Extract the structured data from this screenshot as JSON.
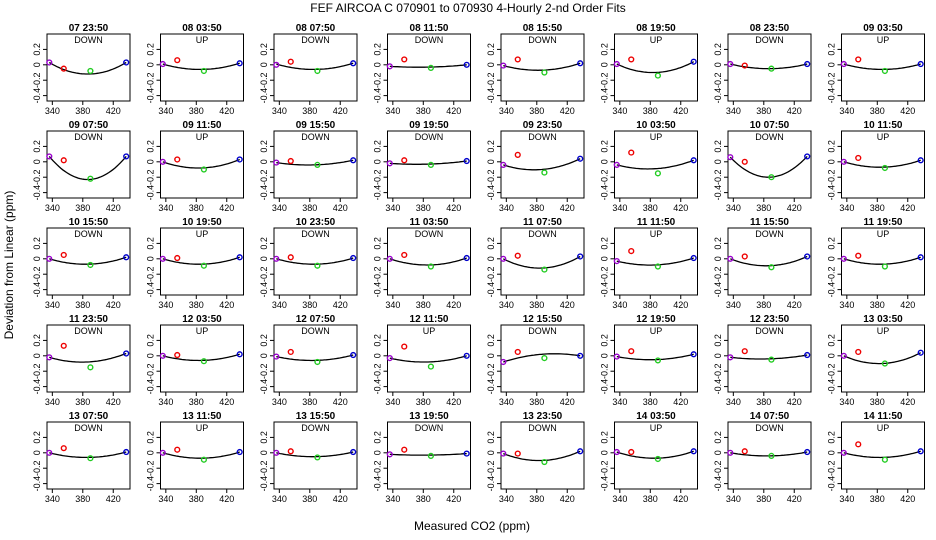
{
  "figure": {
    "title": "FEF   AIRCOA C   070901 to 070930   4-Hourly 2-nd Order Fits",
    "xlabel": "Measured CO2 (ppm)",
    "ylabel": "Deviation from Linear (ppm)"
  },
  "colors": {
    "curve": "#000000",
    "std_low": "#9900cc",
    "std_mid1": "#ee0000",
    "std_mid2": "#22cc22",
    "std_high": "#0000cc",
    "frame": "#000000"
  },
  "chart_data": {
    "type": "scatter",
    "x_ticks": [
      340,
      380,
      420
    ],
    "y_ticks": [
      -0.4,
      -0.2,
      0,
      0.2
    ],
    "x_tick_labels": [
      "340",
      "380",
      "420"
    ],
    "y_tick_labels": [
      "-0.4",
      "-0.2",
      "0",
      "0.2"
    ],
    "xlim": [
      333,
      442
    ],
    "ylim": [
      -0.47,
      0.4
    ],
    "std_x": [
      336,
      355,
      390,
      437
    ],
    "panels": [
      {
        "title": "07 23:50",
        "mode": "DOWN",
        "points": [
          0.03,
          -0.05,
          -0.08,
          0.03
        ],
        "curve": [
          0.03,
          -0.12,
          0.03
        ]
      },
      {
        "title": "08 03:50",
        "mode": "UP",
        "points": [
          0.01,
          0.06,
          -0.08,
          0.02
        ],
        "curve": [
          0.01,
          -0.06,
          0.02
        ]
      },
      {
        "title": "08 07:50",
        "mode": "DOWN",
        "points": [
          0.0,
          0.04,
          -0.08,
          0.02
        ],
        "curve": [
          0.01,
          -0.06,
          0.02
        ]
      },
      {
        "title": "08 11:50",
        "mode": "DOWN",
        "points": [
          -0.02,
          0.07,
          -0.04,
          0.0
        ],
        "curve": [
          -0.02,
          -0.03,
          0.0
        ]
      },
      {
        "title": "08 15:50",
        "mode": "DOWN",
        "points": [
          -0.01,
          0.07,
          -0.1,
          0.02
        ],
        "curve": [
          -0.01,
          -0.07,
          0.02
        ]
      },
      {
        "title": "08 19:50",
        "mode": "UP",
        "points": [
          0.01,
          0.07,
          -0.14,
          0.04
        ],
        "curve": [
          0.01,
          -0.1,
          0.04
        ]
      },
      {
        "title": "08 23:50",
        "mode": "DOWN",
        "points": [
          0.01,
          -0.01,
          -0.05,
          0.01
        ],
        "curve": [
          0.01,
          -0.05,
          0.01
        ]
      },
      {
        "title": "09 03:50",
        "mode": "UP",
        "points": [
          0.01,
          0.07,
          -0.08,
          0.01
        ],
        "curve": [
          0.01,
          -0.06,
          0.01
        ]
      },
      {
        "title": "09 07:50",
        "mode": "DOWN",
        "points": [
          0.07,
          0.02,
          -0.22,
          0.07
        ],
        "curve": [
          0.07,
          -0.23,
          0.07
        ]
      },
      {
        "title": "09 11:50",
        "mode": "UP",
        "points": [
          0.0,
          0.03,
          -0.1,
          0.03
        ],
        "curve": [
          0.0,
          -0.08,
          0.03
        ]
      },
      {
        "title": "09 15:50",
        "mode": "DOWN",
        "points": [
          -0.01,
          0.01,
          -0.04,
          0.02
        ],
        "curve": [
          -0.01,
          -0.04,
          0.02
        ]
      },
      {
        "title": "09 19:50",
        "mode": "DOWN",
        "points": [
          -0.02,
          0.02,
          -0.04,
          0.01
        ],
        "curve": [
          -0.02,
          -0.03,
          0.01
        ]
      },
      {
        "title": "09 23:50",
        "mode": "DOWN",
        "points": [
          -0.04,
          0.09,
          -0.14,
          0.04
        ],
        "curve": [
          -0.04,
          -0.1,
          0.04
        ]
      },
      {
        "title": "10 03:50",
        "mode": "UP",
        "points": [
          -0.04,
          0.12,
          -0.15,
          0.02
        ],
        "curve": [
          -0.04,
          -0.09,
          0.02
        ]
      },
      {
        "title": "10 07:50",
        "mode": "DOWN",
        "points": [
          0.06,
          0.0,
          -0.2,
          0.07
        ],
        "curve": [
          0.06,
          -0.2,
          0.07
        ]
      },
      {
        "title": "10 11:50",
        "mode": "UP",
        "points": [
          0.0,
          0.05,
          -0.08,
          0.02
        ],
        "curve": [
          0.0,
          -0.07,
          0.02
        ]
      },
      {
        "title": "10 15:50",
        "mode": "DOWN",
        "points": [
          0.0,
          0.05,
          -0.08,
          0.02
        ],
        "curve": [
          0.0,
          -0.07,
          0.02
        ]
      },
      {
        "title": "10 19:50",
        "mode": "UP",
        "points": [
          0.0,
          0.01,
          -0.09,
          0.02
        ],
        "curve": [
          0.0,
          -0.07,
          0.02
        ]
      },
      {
        "title": "10 23:50",
        "mode": "DOWN",
        "points": [
          0.0,
          0.02,
          -0.09,
          0.01
        ],
        "curve": [
          0.0,
          -0.07,
          0.01
        ]
      },
      {
        "title": "11 03:50",
        "mode": "DOWN",
        "points": [
          0.0,
          0.05,
          -0.1,
          0.01
        ],
        "curve": [
          0.0,
          -0.08,
          0.01
        ]
      },
      {
        "title": "11 07:50",
        "mode": "DOWN",
        "points": [
          0.0,
          0.04,
          -0.14,
          0.03
        ],
        "curve": [
          0.0,
          -0.12,
          0.03
        ]
      },
      {
        "title": "11 11:50",
        "mode": "UP",
        "points": [
          -0.03,
          0.1,
          -0.1,
          0.01
        ],
        "curve": [
          -0.03,
          -0.08,
          0.01
        ]
      },
      {
        "title": "11 15:50",
        "mode": "DOWN",
        "points": [
          0.0,
          0.03,
          -0.11,
          0.03
        ],
        "curve": [
          0.0,
          -0.09,
          0.03
        ]
      },
      {
        "title": "11 19:50",
        "mode": "UP",
        "points": [
          0.0,
          0.04,
          -0.1,
          0.02
        ],
        "curve": [
          0.0,
          -0.07,
          0.02
        ]
      },
      {
        "title": "11 23:50",
        "mode": "DOWN",
        "points": [
          -0.02,
          0.13,
          -0.15,
          0.03
        ],
        "curve": [
          -0.02,
          -0.08,
          0.03
        ]
      },
      {
        "title": "12 03:50",
        "mode": "UP",
        "points": [
          0.0,
          0.01,
          -0.07,
          0.02
        ],
        "curve": [
          0.0,
          -0.06,
          0.02
        ]
      },
      {
        "title": "12 07:50",
        "mode": "DOWN",
        "points": [
          -0.01,
          0.05,
          -0.08,
          0.01
        ],
        "curve": [
          -0.01,
          -0.06,
          0.01
        ]
      },
      {
        "title": "12 11:50",
        "mode": "UP",
        "points": [
          -0.03,
          0.12,
          -0.14,
          0.0
        ],
        "curve": [
          -0.03,
          -0.08,
          0.0
        ]
      },
      {
        "title": "12 15:50",
        "mode": "DOWN",
        "points": [
          -0.08,
          0.05,
          -0.03,
          0.0
        ],
        "curve": [
          -0.08,
          0.02,
          0.0
        ]
      },
      {
        "title": "12 19:50",
        "mode": "UP",
        "points": [
          -0.01,
          0.06,
          -0.06,
          0.02
        ],
        "curve": [
          -0.01,
          -0.05,
          0.02
        ]
      },
      {
        "title": "12 23:50",
        "mode": "DOWN",
        "points": [
          -0.02,
          0.06,
          -0.05,
          0.01
        ],
        "curve": [
          -0.02,
          -0.04,
          0.01
        ]
      },
      {
        "title": "13 03:50",
        "mode": "UP",
        "points": [
          0.0,
          0.05,
          -0.1,
          0.04
        ],
        "curve": [
          0.0,
          -0.1,
          0.04
        ]
      },
      {
        "title": "13 07:50",
        "mode": "DOWN",
        "points": [
          0.0,
          0.06,
          -0.07,
          0.01
        ],
        "curve": [
          0.0,
          -0.06,
          0.01
        ]
      },
      {
        "title": "13 11:50",
        "mode": "UP",
        "points": [
          0.0,
          0.04,
          -0.09,
          0.01
        ],
        "curve": [
          0.0,
          -0.07,
          0.01
        ]
      },
      {
        "title": "13 15:50",
        "mode": "DOWN",
        "points": [
          0.0,
          0.02,
          -0.06,
          0.01
        ],
        "curve": [
          0.0,
          -0.05,
          0.01
        ]
      },
      {
        "title": "13 19:50",
        "mode": "DOWN",
        "points": [
          -0.02,
          0.04,
          -0.04,
          -0.01
        ],
        "curve": [
          -0.02,
          -0.03,
          -0.01
        ]
      },
      {
        "title": "13 23:50",
        "mode": "DOWN",
        "points": [
          -0.01,
          -0.01,
          -0.12,
          0.02
        ],
        "curve": [
          -0.01,
          -0.1,
          0.02
        ]
      },
      {
        "title": "14 03:50",
        "mode": "UP",
        "points": [
          0.01,
          0.01,
          -0.08,
          0.02
        ],
        "curve": [
          0.01,
          -0.07,
          0.02
        ]
      },
      {
        "title": "14 07:50",
        "mode": "DOWN",
        "points": [
          0.0,
          0.02,
          -0.04,
          0.01
        ],
        "curve": [
          0.0,
          -0.04,
          0.01
        ]
      },
      {
        "title": "14 11:50",
        "mode": "UP",
        "points": [
          0.0,
          0.11,
          -0.09,
          0.02
        ],
        "curve": [
          0.0,
          -0.06,
          0.02
        ]
      }
    ]
  }
}
